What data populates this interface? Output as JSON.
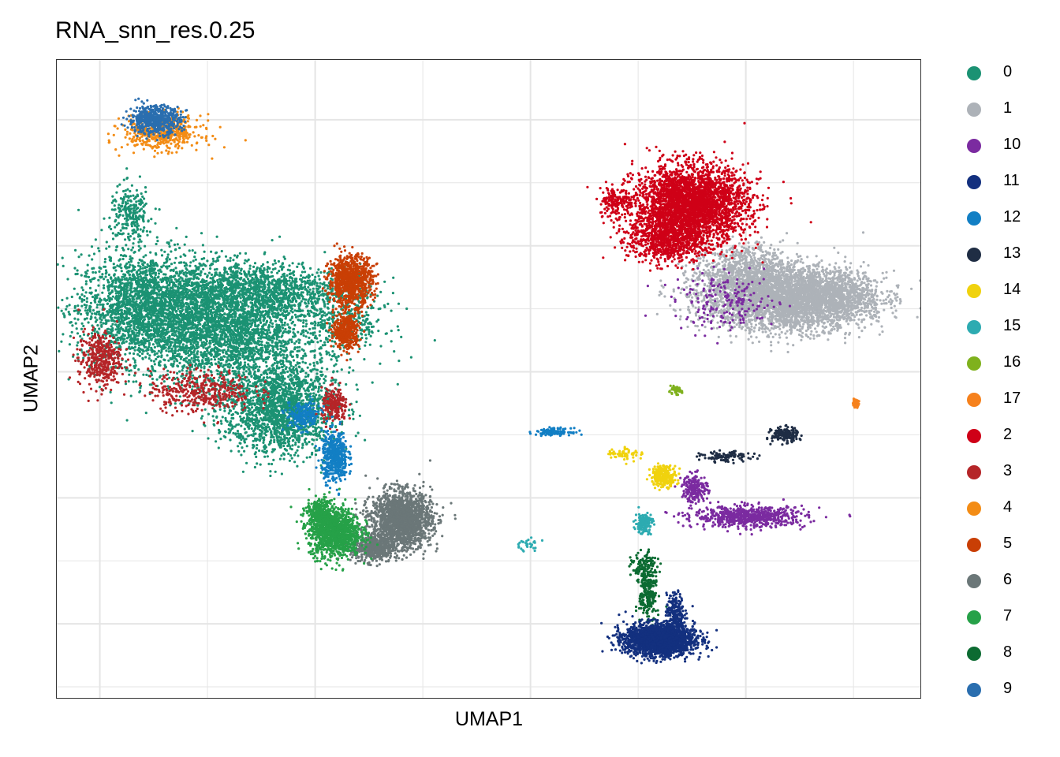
{
  "chart_data": {
    "type": "scatter",
    "title": "RNA_snn_res.0.25",
    "xlabel": "UMAP1",
    "ylabel": "UMAP2",
    "grid": true,
    "x_ticks_labeled": false,
    "y_ticks_labeled": false,
    "legend_position": "right",
    "legend": [
      {
        "label": "0",
        "color": "#1b9273"
      },
      {
        "label": "1",
        "color": "#adb2b8"
      },
      {
        "label": "10",
        "color": "#7b2ba0"
      },
      {
        "label": "11",
        "color": "#13307f"
      },
      {
        "label": "12",
        "color": "#127fc4"
      },
      {
        "label": "13",
        "color": "#1f2d44"
      },
      {
        "label": "14",
        "color": "#f0d20e"
      },
      {
        "label": "15",
        "color": "#2dabb1"
      },
      {
        "label": "16",
        "color": "#7fb11d"
      },
      {
        "label": "17",
        "color": "#f6811c"
      },
      {
        "label": "2",
        "color": "#cf0017"
      },
      {
        "label": "3",
        "color": "#b52528"
      },
      {
        "label": "4",
        "color": "#f38c15"
      },
      {
        "label": "5",
        "color": "#c93f05"
      },
      {
        "label": "6",
        "color": "#6b7778"
      },
      {
        "label": "7",
        "color": "#26a148"
      },
      {
        "label": "8",
        "color": "#0c6b32"
      },
      {
        "label": "9",
        "color": "#2a6eaf"
      }
    ],
    "series": [
      {
        "cluster": "0",
        "blobs": [
          [
            -8.8,
            4.0,
            1.6,
            1.6,
            2500
          ],
          [
            -6.6,
            3.2,
            1.8,
            1.7,
            2500
          ],
          [
            -5.4,
            0.8,
            1.3,
            1.3,
            1800
          ],
          [
            -6.0,
            4.6,
            2.0,
            0.8,
            1200
          ],
          [
            -9.2,
            7.0,
            0.5,
            0.8,
            250
          ],
          [
            -3.8,
            3.6,
            1.0,
            1.2,
            400
          ]
        ]
      },
      {
        "cluster": "1",
        "blobs": [
          [
            7.5,
            4.3,
            1.9,
            0.9,
            3200
          ],
          [
            6.5,
            5.2,
            1.2,
            0.8,
            800
          ],
          [
            8.6,
            4.4,
            1.3,
            0.7,
            900
          ]
        ]
      },
      {
        "cluster": "2",
        "blobs": [
          [
            5.1,
            7.3,
            1.3,
            1.1,
            3200
          ],
          [
            4.5,
            6.2,
            0.9,
            0.7,
            700
          ],
          [
            3.2,
            7.4,
            0.4,
            0.4,
            150
          ]
        ]
      },
      {
        "cluster": "3",
        "blobs": [
          [
            -10.0,
            2.4,
            0.5,
            0.8,
            400
          ],
          [
            -7.4,
            1.4,
            1.2,
            0.6,
            400
          ],
          [
            -4.0,
            0.9,
            0.3,
            0.5,
            200
          ]
        ]
      },
      {
        "cluster": "4",
        "blobs": [
          [
            -8.4,
            9.6,
            0.9,
            0.5,
            500
          ]
        ]
      },
      {
        "cluster": "5",
        "blobs": [
          [
            -3.6,
            4.9,
            0.5,
            0.7,
            900
          ],
          [
            -3.7,
            3.3,
            0.3,
            0.5,
            400
          ]
        ]
      },
      {
        "cluster": "6",
        "blobs": [
          [
            -2.3,
            -2.7,
            0.7,
            0.8,
            1800
          ],
          [
            -3.0,
            -3.6,
            0.5,
            0.4,
            500
          ]
        ]
      },
      {
        "cluster": "7",
        "blobs": [
          [
            -4.0,
            -3.1,
            0.6,
            0.7,
            1200
          ],
          [
            -4.4,
            -2.5,
            0.3,
            0.4,
            300
          ]
        ]
      },
      {
        "cluster": "8",
        "blobs": [
          [
            4.0,
            -5.0,
            0.2,
            0.9,
            250
          ],
          [
            3.9,
            -4.2,
            0.3,
            0.4,
            100
          ]
        ]
      },
      {
        "cluster": "9",
        "blobs": [
          [
            -8.6,
            10.0,
            0.6,
            0.4,
            600
          ]
        ]
      },
      {
        "cluster": "10",
        "blobs": [
          [
            6.6,
            -2.6,
            1.3,
            0.3,
            700
          ],
          [
            5.2,
            -1.7,
            0.3,
            0.4,
            200
          ],
          [
            6.0,
            4.2,
            1.2,
            0.8,
            200
          ]
        ]
      },
      {
        "cluster": "11",
        "blobs": [
          [
            4.3,
            -6.5,
            0.8,
            0.45,
            2200
          ],
          [
            4.7,
            -5.6,
            0.2,
            0.5,
            200
          ]
        ]
      },
      {
        "cluster": "12",
        "blobs": [
          [
            -4.0,
            -0.7,
            0.3,
            0.7,
            500
          ],
          [
            1.6,
            0.1,
            0.4,
            0.1,
            120
          ],
          [
            -4.8,
            0.6,
            0.4,
            0.4,
            200
          ]
        ]
      },
      {
        "cluster": "13",
        "blobs": [
          [
            7.5,
            0.0,
            0.3,
            0.2,
            200
          ],
          [
            6.0,
            -0.7,
            0.6,
            0.15,
            100
          ]
        ]
      },
      {
        "cluster": "14",
        "blobs": [
          [
            4.4,
            -1.3,
            0.3,
            0.3,
            250
          ],
          [
            3.4,
            -0.6,
            0.4,
            0.2,
            60
          ]
        ]
      },
      {
        "cluster": "15",
        "blobs": [
          [
            3.9,
            -2.8,
            0.2,
            0.3,
            150
          ],
          [
            0.9,
            -3.5,
            0.3,
            0.2,
            30
          ]
        ]
      },
      {
        "cluster": "16",
        "blobs": [
          [
            4.7,
            1.4,
            0.15,
            0.1,
            60
          ]
        ]
      },
      {
        "cluster": "17",
        "blobs": [
          [
            9.3,
            1.0,
            0.08,
            0.1,
            50
          ]
        ]
      }
    ]
  }
}
